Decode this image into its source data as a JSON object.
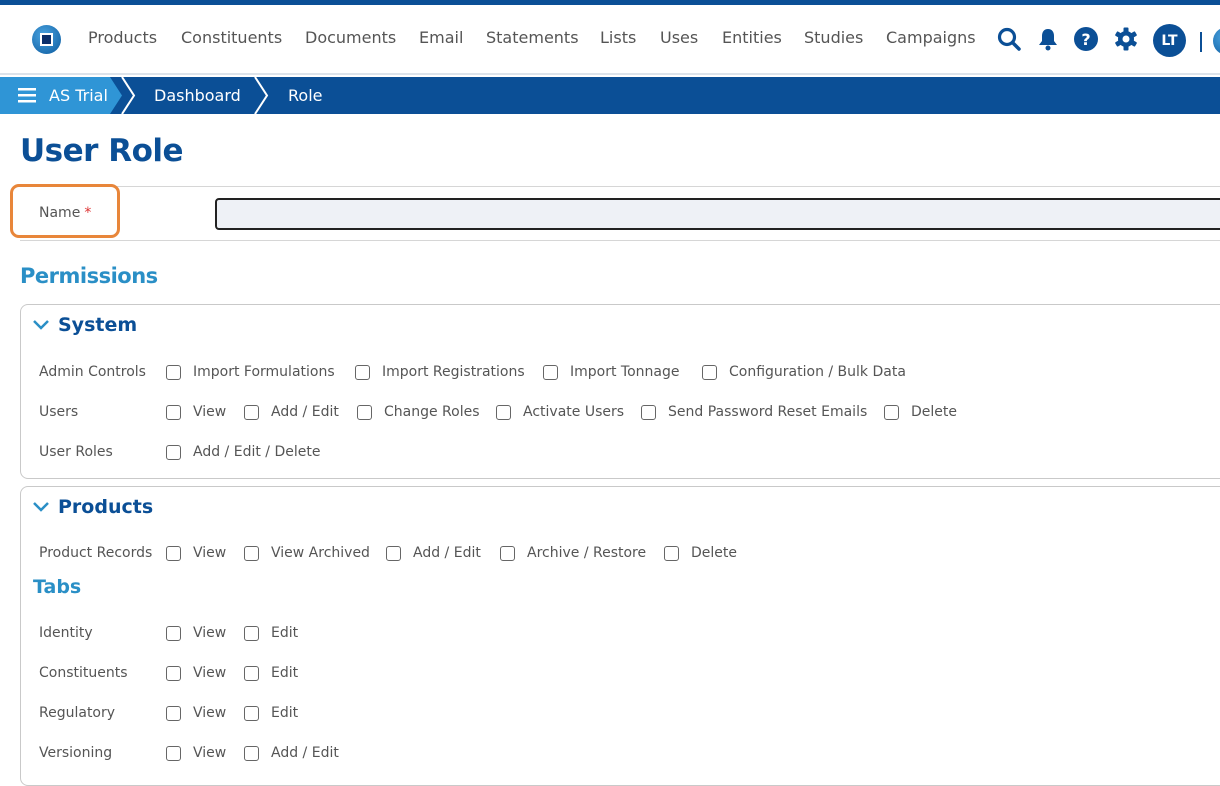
{
  "nav": {
    "items": [
      "Products",
      "Constituents",
      "Documents",
      "Email",
      "Statements",
      "Lists",
      "Uses",
      "Entities",
      "Studies",
      "Campaigns"
    ],
    "avatar": "LT"
  },
  "breadcrumb": [
    "AS Trial",
    "Dashboard",
    "Role"
  ],
  "page": {
    "title": "User Role",
    "name_label": "Name",
    "required_mark": "*",
    "name_value": "",
    "permissions_heading": "Permissions"
  },
  "system": {
    "title": "System",
    "rows": [
      {
        "label": "Admin Controls",
        "options": [
          "Import Formulations",
          "Import Registrations",
          "Import Tonnage",
          "Configuration / Bulk Data"
        ]
      },
      {
        "label": "Users",
        "options": [
          "View",
          "Add / Edit",
          "Change Roles",
          "Activate Users",
          "Send Password Reset Emails",
          "Delete"
        ]
      },
      {
        "label": "User Roles",
        "options": [
          "Add / Edit / Delete"
        ]
      }
    ]
  },
  "products": {
    "title": "Products",
    "rows": [
      {
        "label": "Product Records",
        "options": [
          "View",
          "View Archived",
          "Add / Edit",
          "Archive / Restore",
          "Delete"
        ]
      }
    ],
    "tabs_heading": "Tabs",
    "tab_rows": [
      {
        "label": "Identity",
        "options": [
          "View",
          "Edit"
        ]
      },
      {
        "label": "Constituents",
        "options": [
          "View",
          "Edit"
        ]
      },
      {
        "label": "Regulatory",
        "options": [
          "View",
          "Edit"
        ]
      },
      {
        "label": "Versioning",
        "options": [
          "View",
          "Add / Edit"
        ]
      }
    ]
  },
  "colors": {
    "primary": "#0b4f96",
    "accent": "#2a8fc6",
    "highlight": "#e8863a"
  }
}
